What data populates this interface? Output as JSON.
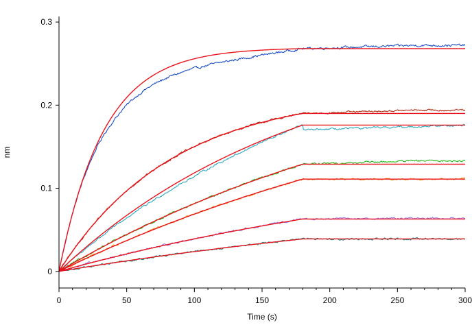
{
  "chart_data": {
    "type": "line",
    "title": "",
    "xlabel": "Time (s)",
    "ylabel": "nm",
    "xlim": [
      0,
      300
    ],
    "ylim": [
      -0.02,
      0.31
    ],
    "x_ticks": [
      0,
      50,
      100,
      150,
      200,
      250,
      300
    ],
    "x_tick_labels": [
      "0",
      "50",
      "100",
      "150",
      "200",
      "250",
      "300"
    ],
    "y_ticks": [
      0,
      0.1,
      0.2,
      0.3
    ],
    "y_tick_labels": [
      "0",
      "0.1",
      "0.2",
      "0.3"
    ],
    "grid": false,
    "legend": "none",
    "fit_color": "#e8141c",
    "association_end": 180,
    "series": [
      {
        "color": "#1a4fc4",
        "rate": 0.03,
        "plateau": 0.268,
        "raw_end": 0.272
      },
      {
        "color": "#b02a10",
        "rate": 0.012,
        "plateau": 0.19,
        "raw_end": 0.194
      },
      {
        "color": "#2ca8c0",
        "rate": 0.0055,
        "plateau": 0.176,
        "raw_end": 0.176
      },
      {
        "color": "#22b814",
        "rate": 0.0035,
        "plateau": 0.129,
        "raw_end": 0.133
      },
      {
        "color": "#f0961e",
        "rate": 0.003,
        "plateau": 0.111,
        "raw_end": 0.111
      },
      {
        "color": "#a070e0",
        "rate": 0.003,
        "plateau": 0.063,
        "raw_end": 0.064
      },
      {
        "color": "#1e8c8c",
        "rate": 0.0025,
        "plateau": 0.039,
        "raw_end": 0.039
      }
    ]
  }
}
